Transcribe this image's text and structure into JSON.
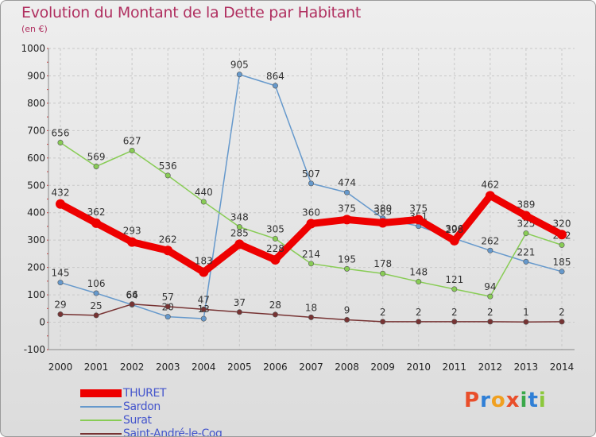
{
  "header": {
    "title": "Evolution du Montant de la Dette par Habitant",
    "subtitle": "(en €)"
  },
  "logo": {
    "letters": [
      "P",
      "r",
      "o",
      "x",
      "i",
      "t",
      "i"
    ],
    "colors": [
      "#e94e2a",
      "#2f7fd6",
      "#f0a020",
      "#e94e2a",
      "#3aa84a",
      "#2f7fd6",
      "#8cc83c"
    ]
  },
  "chart_data": {
    "type": "line",
    "title": "Evolution du Montant de la Dette par Habitant",
    "subtitle": "(en €)",
    "xlabel": "",
    "ylabel": "",
    "categories": [
      "2000",
      "2001",
      "2002",
      "2003",
      "2004",
      "2005",
      "2006",
      "2007",
      "2008",
      "2009",
      "2010",
      "2011",
      "2012",
      "2013",
      "2014"
    ],
    "ylim": [
      -100,
      1000
    ],
    "yticks": [
      -100,
      0,
      100,
      200,
      300,
      400,
      500,
      600,
      700,
      800,
      900,
      1000
    ],
    "grid": true,
    "legend": "bottom-left",
    "series": [
      {
        "name": "THURET",
        "color": "#ee0000",
        "values": [
          432,
          362,
          293,
          262,
          183,
          285,
          228,
          360,
          375,
          363,
          375,
          298,
          462,
          389,
          320
        ],
        "labels": [
          "432",
          "362",
          "293",
          "262",
          "183",
          "285",
          "228",
          "360",
          "375",
          "363",
          "375",
          "298",
          "462",
          "389",
          "320"
        ]
      },
      {
        "name": "Sardon",
        "color": "#6699cc",
        "values": [
          145,
          106,
          64,
          20,
          13,
          905,
          864,
          507,
          474,
          380,
          351,
          306,
          262,
          221,
          185
        ],
        "labels": [
          "145",
          "106",
          "64",
          "20",
          "13",
          "905",
          "864",
          "507",
          "474",
          "380",
          "351",
          "306",
          "262",
          "221",
          "185"
        ]
      },
      {
        "name": "Surat",
        "color": "#88cc55",
        "values": [
          656,
          569,
          627,
          536,
          440,
          348,
          305,
          214,
          195,
          178,
          148,
          121,
          94,
          325,
          282
        ],
        "labels": [
          "656",
          "569",
          "627",
          "536",
          "440",
          "348",
          "305",
          "214",
          "195",
          "178",
          "148",
          "121",
          "94",
          "325",
          "282"
        ]
      },
      {
        "name": "Saint-André-le-Coq",
        "color": "#773333",
        "values": [
          29,
          25,
          66,
          57,
          47,
          37,
          28,
          18,
          9,
          2,
          2,
          2,
          2,
          1,
          2
        ],
        "labels": [
          "29",
          "25",
          "66",
          "57",
          "47",
          "37",
          "28",
          "18",
          "9",
          "2",
          "2",
          "2",
          "2",
          "1",
          "2"
        ]
      }
    ]
  }
}
